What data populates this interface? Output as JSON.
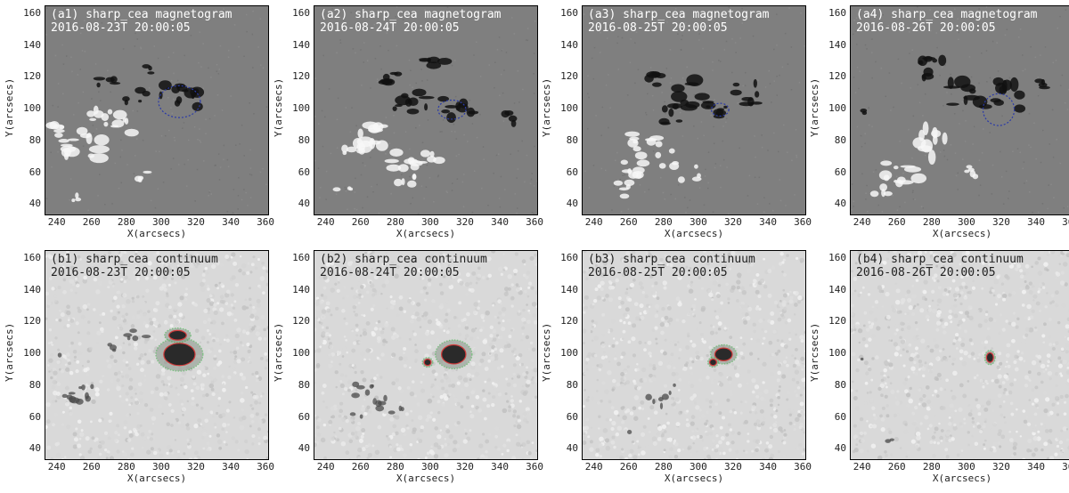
{
  "figure": {
    "x_axis_label": "X(arcsecs)",
    "y_axis_label": "Y(arcsecs)",
    "x_ticks": [
      "240",
      "260",
      "280",
      "300",
      "320",
      "340",
      "360"
    ],
    "y_ticks": [
      "160",
      "140",
      "120",
      "100",
      "80",
      "60",
      "40"
    ],
    "x_tick_values": [
      240,
      260,
      280,
      300,
      320,
      340,
      360
    ],
    "y_tick_values": [
      160,
      140,
      120,
      100,
      80,
      60,
      40
    ],
    "x_range": [
      233,
      362
    ],
    "y_range": [
      33,
      165
    ],
    "colors": {
      "magnetogram_bg": "#7f7f7f",
      "continuum_bg": "#d9d9d9",
      "contour_red": "#d23a3a",
      "contour_green": "#3fb24a",
      "contour_blue": "#2a3aa8"
    }
  },
  "panels": [
    {
      "id": "a1",
      "title": "(a1) sharp_cea magnetogram",
      "date": "2016-08-23T 20:00:05",
      "kind": "magnetogram"
    },
    {
      "id": "a2",
      "title": "(a2) sharp_cea magnetogram",
      "date": "2016-08-24T 20:00:05",
      "kind": "magnetogram"
    },
    {
      "id": "a3",
      "title": "(a3) sharp_cea magnetogram",
      "date": "2016-08-25T 20:00:05",
      "kind": "magnetogram"
    },
    {
      "id": "a4",
      "title": "(a4) sharp_cea magnetogram",
      "date": "2016-08-26T 20:00:05",
      "kind": "magnetogram"
    },
    {
      "id": "b1",
      "title": "(b1) sharp_cea continuum",
      "date": "2016-08-23T 20:00:05",
      "kind": "continuum"
    },
    {
      "id": "b2",
      "title": "(b2) sharp_cea continuum",
      "date": "2016-08-24T 20:00:05",
      "kind": "continuum"
    },
    {
      "id": "b3",
      "title": "(b3) sharp_cea continuum",
      "date": "2016-08-25T 20:00:05",
      "kind": "continuum"
    },
    {
      "id": "b4",
      "title": "(b4) sharp_cea continuum",
      "date": "2016-08-26T 20:00:05",
      "kind": "continuum"
    }
  ]
}
